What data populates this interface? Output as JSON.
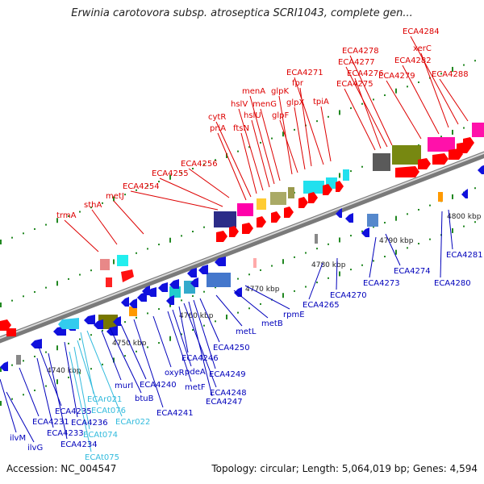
{
  "title": "Erwinia carotovora subsp. atroseptica SCRI1043, complete gen...",
  "accession": "Accession: NC_004547",
  "topology": "Topology: circular; Length: 5,064,019 bp; Genes: 4,594",
  "colors": {
    "forward_gene": "#ff0000",
    "reverse_gene": "#0000dd",
    "rna_forward": "#e8a0a0",
    "rna_reverse": "#33ccdd",
    "backbone": "#888888",
    "tick": "#228822"
  },
  "kbp_ticks": [
    "4740 kbp",
    "4750 kbp",
    "4760 kbp",
    "4770 kbp",
    "4780 kbp",
    "4790 kbp",
    "4800 kbp"
  ],
  "forward_labels": [
    "trmA",
    "sthA",
    "metJ",
    "ECA4254",
    "ECA4255",
    "ECA4256",
    "priA",
    "cytR",
    "ftsN",
    "hslV",
    "hslU",
    "menA",
    "menG",
    "glpK",
    "glpF",
    "glpX",
    "fpr",
    "ECA4271",
    "tpiA",
    "ECA4275",
    "ECA4276",
    "ECA4277",
    "ECA4278",
    "ECA4279",
    "ECA4282",
    "xerC",
    "ECA4284",
    "ECA4288"
  ],
  "reverse_labels": [
    "ilvM",
    "ilvG",
    "ECA4231",
    "ECA4233",
    "ECA4234",
    "ECA4235",
    "ECA4236",
    "ECAt075",
    "ECAt074",
    "ECAt076",
    "ECAr021",
    "ECAr022",
    "murI",
    "btuB",
    "ECA4240",
    "ECA4241",
    "oxyR",
    "metF",
    "pdeA",
    "ECA4246",
    "ECA4248",
    "ECA4247",
    "ECA4249",
    "ECA4250",
    "metL",
    "metB",
    "rpmE",
    "ECA4265",
    "ECA4270",
    "ECA4273",
    "ECA4274",
    "ECA4280",
    "ECA4281"
  ]
}
